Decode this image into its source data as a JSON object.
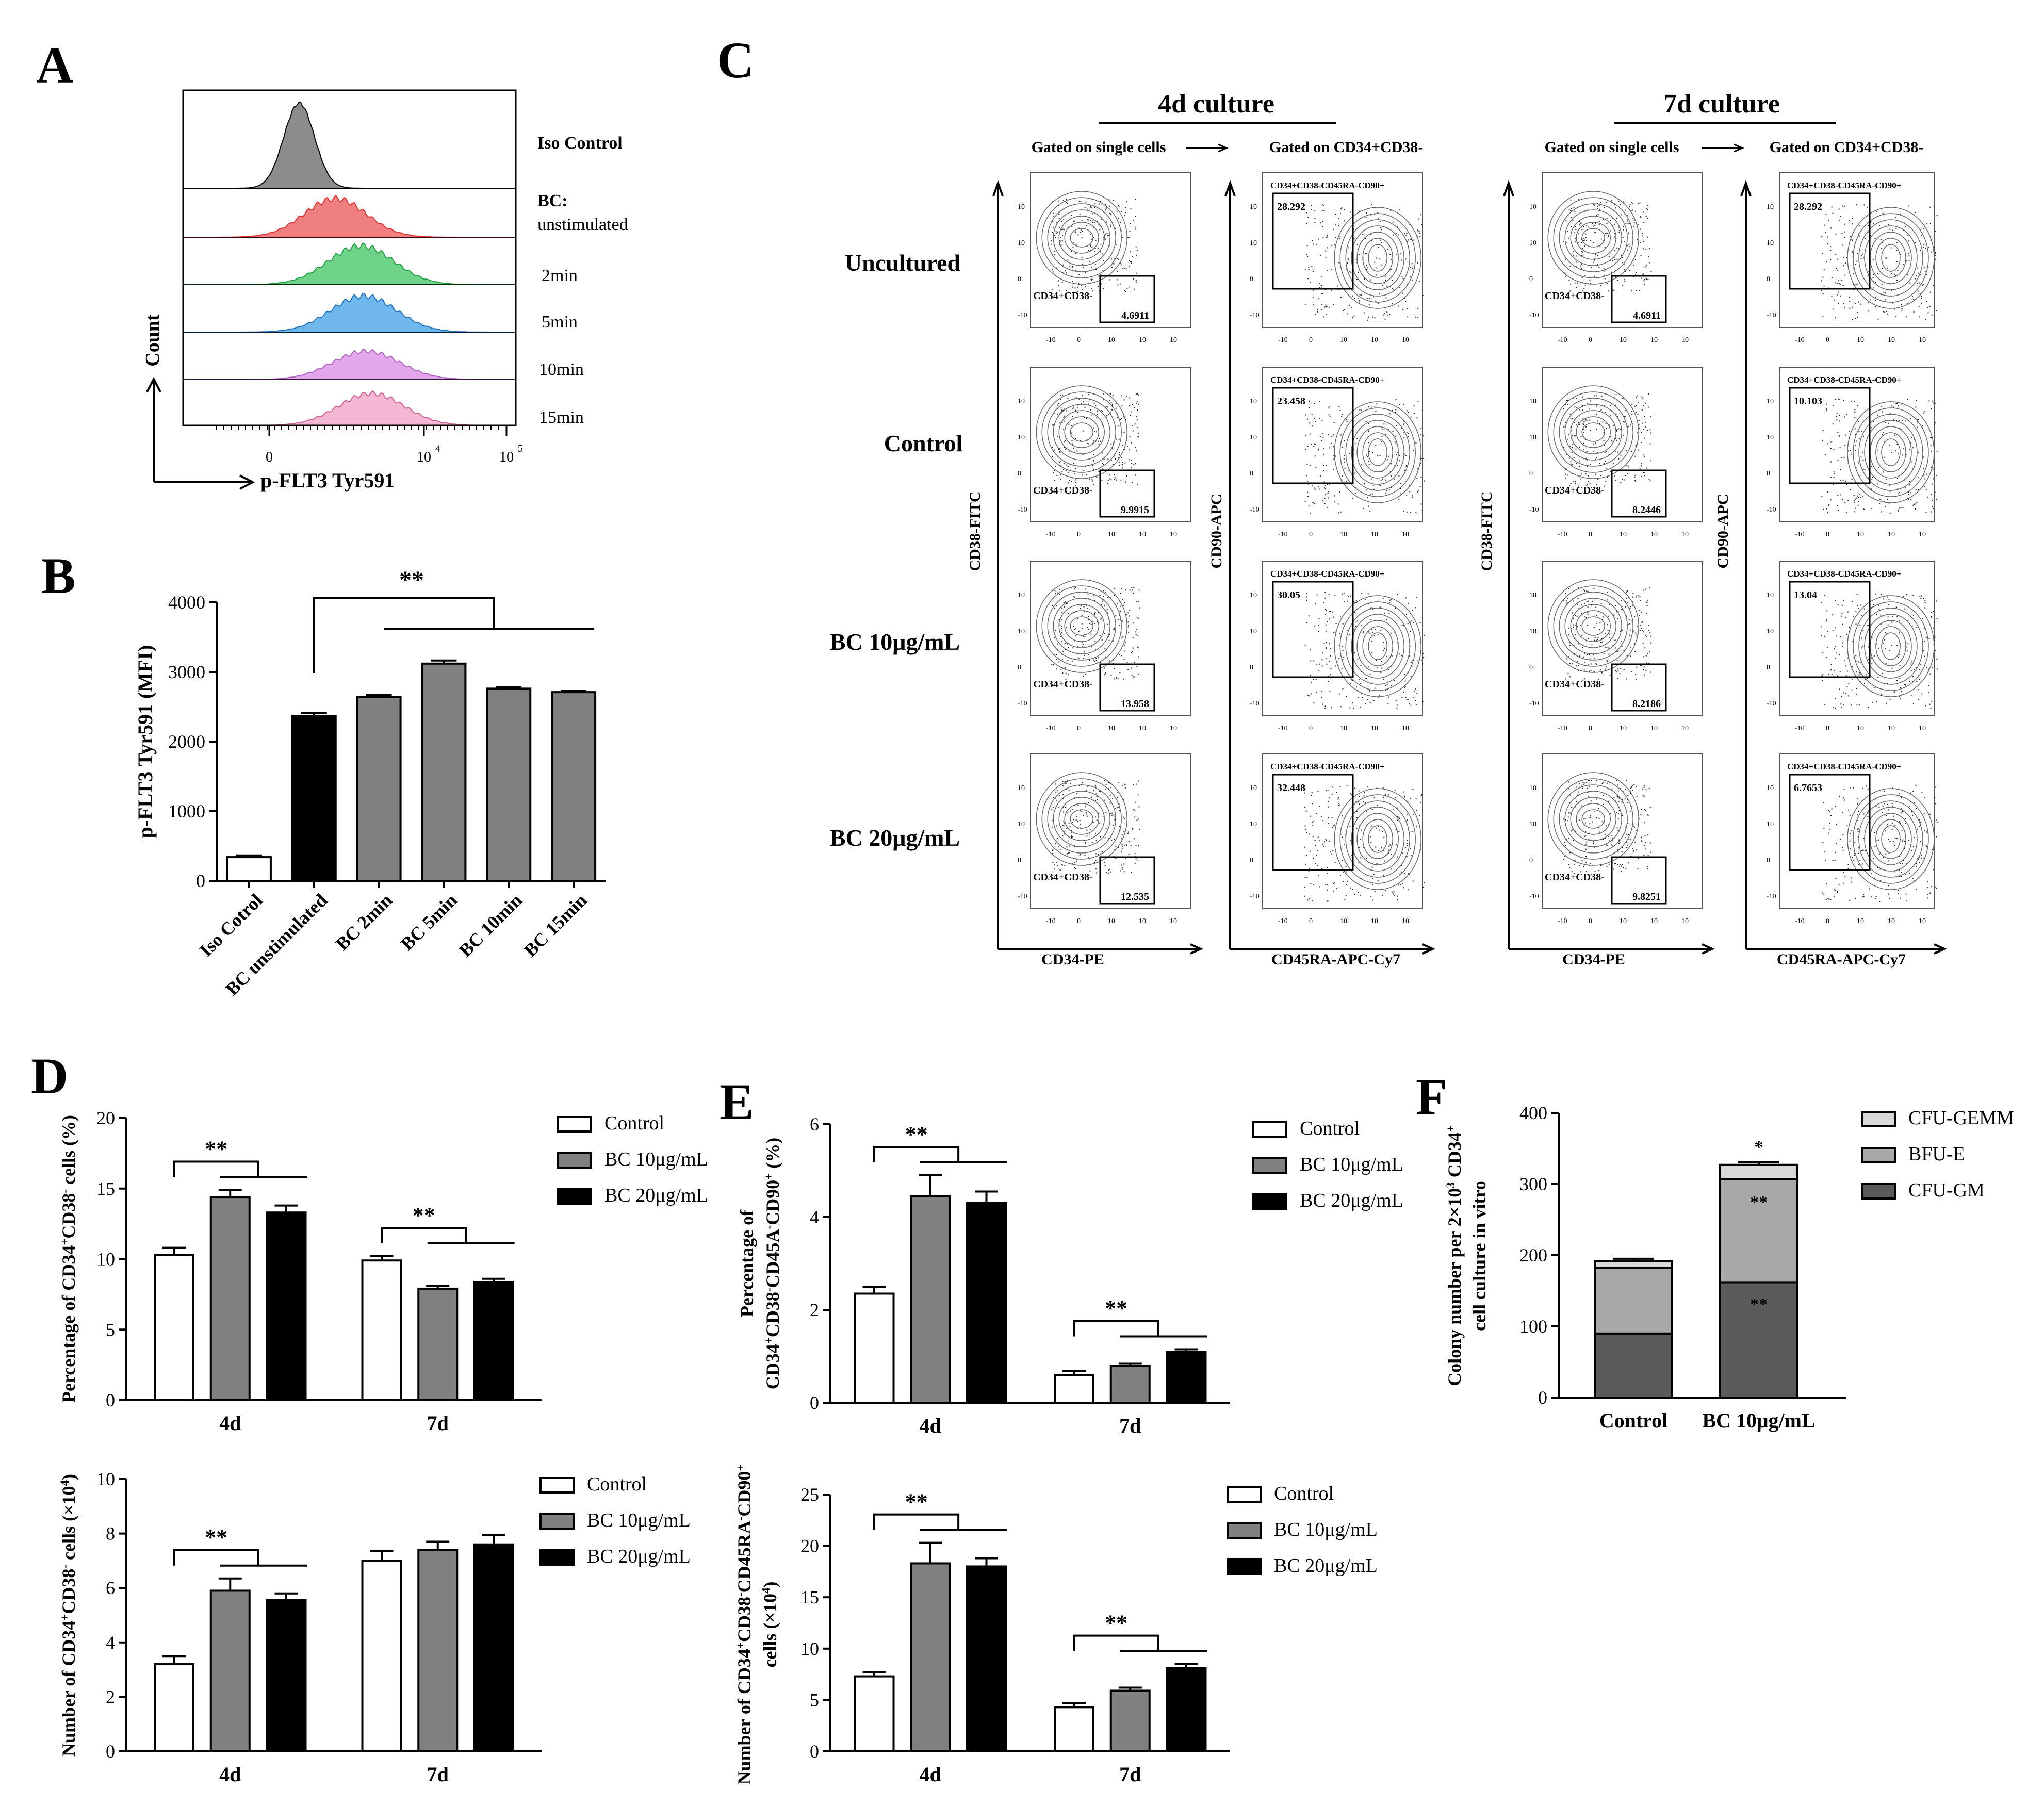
{
  "panels": {
    "A": "A",
    "B": "B",
    "C": "C",
    "D": "D",
    "E": "E",
    "F": "F"
  },
  "panel_a": {
    "labels": [
      "Iso Control",
      "BC:",
      "unstimulated",
      "2min",
      "5min",
      "10min",
      "15min"
    ],
    "colors": [
      "#8c8c8c",
      "#f08080",
      "#6fd48a",
      "#6eb8ee",
      "#e3a8ec",
      "#f4b8d4"
    ],
    "line_colors": [
      "#000000",
      "#e03030",
      "#20a040",
      "#2070c0",
      "#b060c0",
      "#d06090"
    ],
    "ylabel": "Count",
    "xlabel": "p-FLT3 Tyr591",
    "ticks": [
      "0",
      "10",
      "4",
      "10",
      "5"
    ]
  },
  "chart_data": [
    {
      "id": "B",
      "type": "bar",
      "categories": [
        "Iso Cotrol",
        "BC unstimulated",
        "BC 2min",
        "BC 5min",
        "BC 10min",
        "BC 15min"
      ],
      "values": [
        340,
        2370,
        2640,
        3120,
        2760,
        2710
      ],
      "errors": [
        25,
        40,
        30,
        45,
        25,
        20
      ],
      "colors": [
        "#ffffff",
        "#000000",
        "#808080",
        "#808080",
        "#808080",
        "#808080"
      ],
      "ylabel": "p-FLT3 Tyr591 (MFI)",
      "ylim": [
        0,
        4000
      ],
      "yticks": [
        "0",
        "1000",
        "2000",
        "3000",
        "4000"
      ],
      "significance": "**"
    },
    {
      "id": "D1",
      "type": "bar",
      "groups": [
        "4d",
        "7d"
      ],
      "series": [
        {
          "name": "Control",
          "values": [
            10.3,
            9.9
          ],
          "errors": [
            0.5,
            0.3
          ],
          "color": "#ffffff"
        },
        {
          "name": "BC 10μg/mL",
          "values": [
            14.4,
            7.9
          ],
          "errors": [
            0.5,
            0.2
          ],
          "color": "#808080"
        },
        {
          "name": "BC 20μg/mL",
          "values": [
            13.3,
            8.4
          ],
          "errors": [
            0.5,
            0.2
          ],
          "color": "#000000"
        }
      ],
      "ylabel_parts": [
        "Percentage of CD34",
        "+",
        "CD38",
        "-",
        " cells (%)"
      ],
      "ylim": [
        0,
        20
      ],
      "yticks": [
        "0",
        "5",
        "10",
        "15",
        "20"
      ],
      "significance": "**"
    },
    {
      "id": "D2",
      "type": "bar",
      "groups": [
        "4d",
        "7d"
      ],
      "series": [
        {
          "name": "Control",
          "values": [
            3.2,
            7.0
          ],
          "errors": [
            0.3,
            0.35
          ],
          "color": "#ffffff"
        },
        {
          "name": "BC 10μg/mL",
          "values": [
            5.9,
            7.4
          ],
          "errors": [
            0.45,
            0.3
          ],
          "color": "#808080"
        },
        {
          "name": "BC 20μg/mL",
          "values": [
            5.55,
            7.6
          ],
          "errors": [
            0.25,
            0.35
          ],
          "color": "#000000"
        }
      ],
      "ylabel_parts": [
        "Number of CD34",
        "+",
        "CD38",
        "-",
        " cells (×10",
        "4",
        ")"
      ],
      "ylim": [
        0,
        10
      ],
      "yticks": [
        "0",
        "2",
        "4",
        "6",
        "8",
        "10"
      ],
      "significance": "**"
    },
    {
      "id": "E1",
      "type": "bar",
      "groups": [
        "4d",
        "7d"
      ],
      "series": [
        {
          "name": "Control",
          "values": [
            2.35,
            0.6
          ],
          "errors": [
            0.15,
            0.08
          ],
          "color": "#ffffff"
        },
        {
          "name": "BC 10μg/mL",
          "values": [
            4.45,
            0.8
          ],
          "errors": [
            0.45,
            0.05
          ],
          "color": "#808080"
        },
        {
          "name": "BC 20μg/mL",
          "values": [
            4.3,
            1.1
          ],
          "errors": [
            0.25,
            0.05
          ],
          "color": "#000000"
        }
      ],
      "ylabel_line1": "Percentage of",
      "ylabel_parts": [
        "CD34",
        "+",
        "CD38",
        "-",
        "CD45A",
        "-",
        "CD90",
        "+",
        " (%)"
      ],
      "ylim": [
        0,
        6
      ],
      "yticks": [
        "0",
        "2",
        "4",
        "6"
      ],
      "significance": "**"
    },
    {
      "id": "E2",
      "type": "bar",
      "groups": [
        "4d",
        "7d"
      ],
      "series": [
        {
          "name": "Control",
          "values": [
            7.3,
            4.3
          ],
          "errors": [
            0.4,
            0.4
          ],
          "color": "#ffffff"
        },
        {
          "name": "BC 10μg/mL",
          "values": [
            18.3,
            5.9
          ],
          "errors": [
            2.0,
            0.3
          ],
          "color": "#808080"
        },
        {
          "name": "BC 20μg/mL",
          "values": [
            18.0,
            8.1
          ],
          "errors": [
            0.8,
            0.4
          ],
          "color": "#000000"
        }
      ],
      "ylabel_parts": [
        "Number of CD34",
        "+",
        "CD38",
        "-",
        "CD45RA",
        "-",
        "CD90",
        "+"
      ],
      "ylabel_line2_parts": [
        "cells (×10",
        "4",
        ")"
      ],
      "ylim": [
        0,
        25
      ],
      "yticks": [
        "0",
        "5",
        "10",
        "15",
        "20",
        "25"
      ],
      "significance": "**"
    },
    {
      "id": "F",
      "type": "stacked-bar",
      "categories": [
        "Control",
        "BC 10μg/mL"
      ],
      "series": [
        {
          "name": "CFU-GM",
          "values": [
            90,
            162
          ],
          "errors": [
            4,
            5
          ],
          "color": "#5a5a5a"
        },
        {
          "name": "BFU-E",
          "values": [
            92,
            145
          ],
          "errors": [
            3,
            5
          ],
          "color": "#a8a8a8"
        },
        {
          "name": "CFU-GEMM",
          "values": [
            10,
            20
          ],
          "errors": [
            3,
            4
          ],
          "color": "#d9d9d9"
        }
      ],
      "ylabel_parts": [
        "Colony number per 2×10",
        "3",
        " CD34",
        "+"
      ],
      "ylabel_line2": "cell culture in vitro",
      "ylim": [
        0,
        400
      ],
      "yticks": [
        "0",
        "100",
        "200",
        "300",
        "400"
      ],
      "stars": [
        "*",
        "**",
        "**"
      ]
    }
  ],
  "panel_c": {
    "col_headers": [
      "4d culture",
      "7d culture"
    ],
    "gate1": "Gated on single cells",
    "gate2": "Gated on CD34+CD38-",
    "row_labels": [
      "Uncultured",
      "Control",
      "BC 10μg/mL",
      "BC 20μg/mL"
    ],
    "gate_label_left": "CD34+CD38-",
    "gate_label_right": "CD34+CD38-CD45RA-CD90+",
    "axis_y1": "CD38-FITC",
    "axis_x1": "CD34-PE",
    "axis_y2": "CD90-APC",
    "axis_x2": "CD45RA-APC-Cy7",
    "values_4d_left": [
      "4.6911",
      "9.9915",
      "13.958",
      "12.535"
    ],
    "values_4d_right": [
      "28.292",
      "23.458",
      "30.05",
      "32.448"
    ],
    "values_7d_left": [
      "4.6911",
      "8.2446",
      "8.2186",
      "9.8251"
    ],
    "values_7d_right": [
      "28.292",
      "10.103",
      "13.04",
      "6.7653"
    ],
    "tick_labels": [
      "-10",
      "3",
      "0",
      "10",
      "3",
      "10",
      "4",
      "10",
      "5"
    ]
  }
}
